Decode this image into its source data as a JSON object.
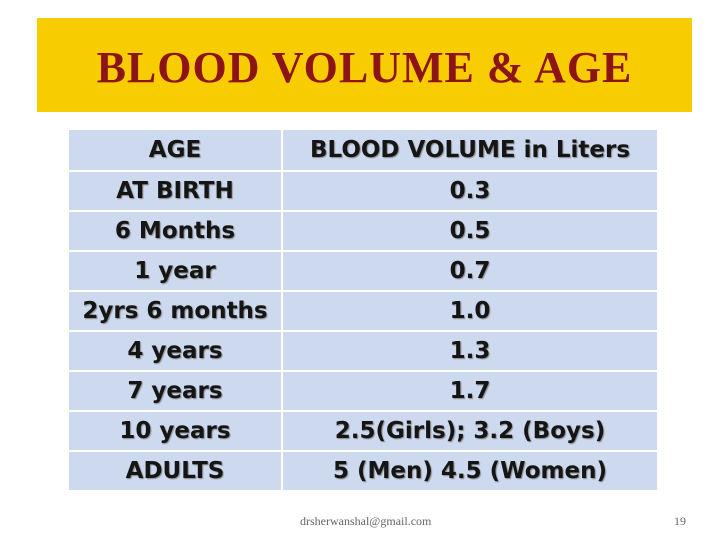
{
  "header": {
    "title": "BLOOD VOLUME & AGE"
  },
  "table": {
    "columns": [
      "AGE",
      "BLOOD VOLUME in Liters"
    ],
    "rows": [
      [
        "AT BIRTH",
        "0.3"
      ],
      [
        "6 Months",
        "0.5"
      ],
      [
        "1 year",
        "0.7"
      ],
      [
        "2yrs 6 months",
        "1.0"
      ],
      [
        "4 years",
        "1.3"
      ],
      [
        "7 years",
        "1.7"
      ],
      [
        "10 years",
        "2.5(Girls); 3.2 (Boys)"
      ],
      [
        "ADULTS",
        "5 (Men) 4.5 (Women)"
      ]
    ]
  },
  "footer": {
    "email": "drsherwanshal@gmail.com",
    "page": "19"
  }
}
